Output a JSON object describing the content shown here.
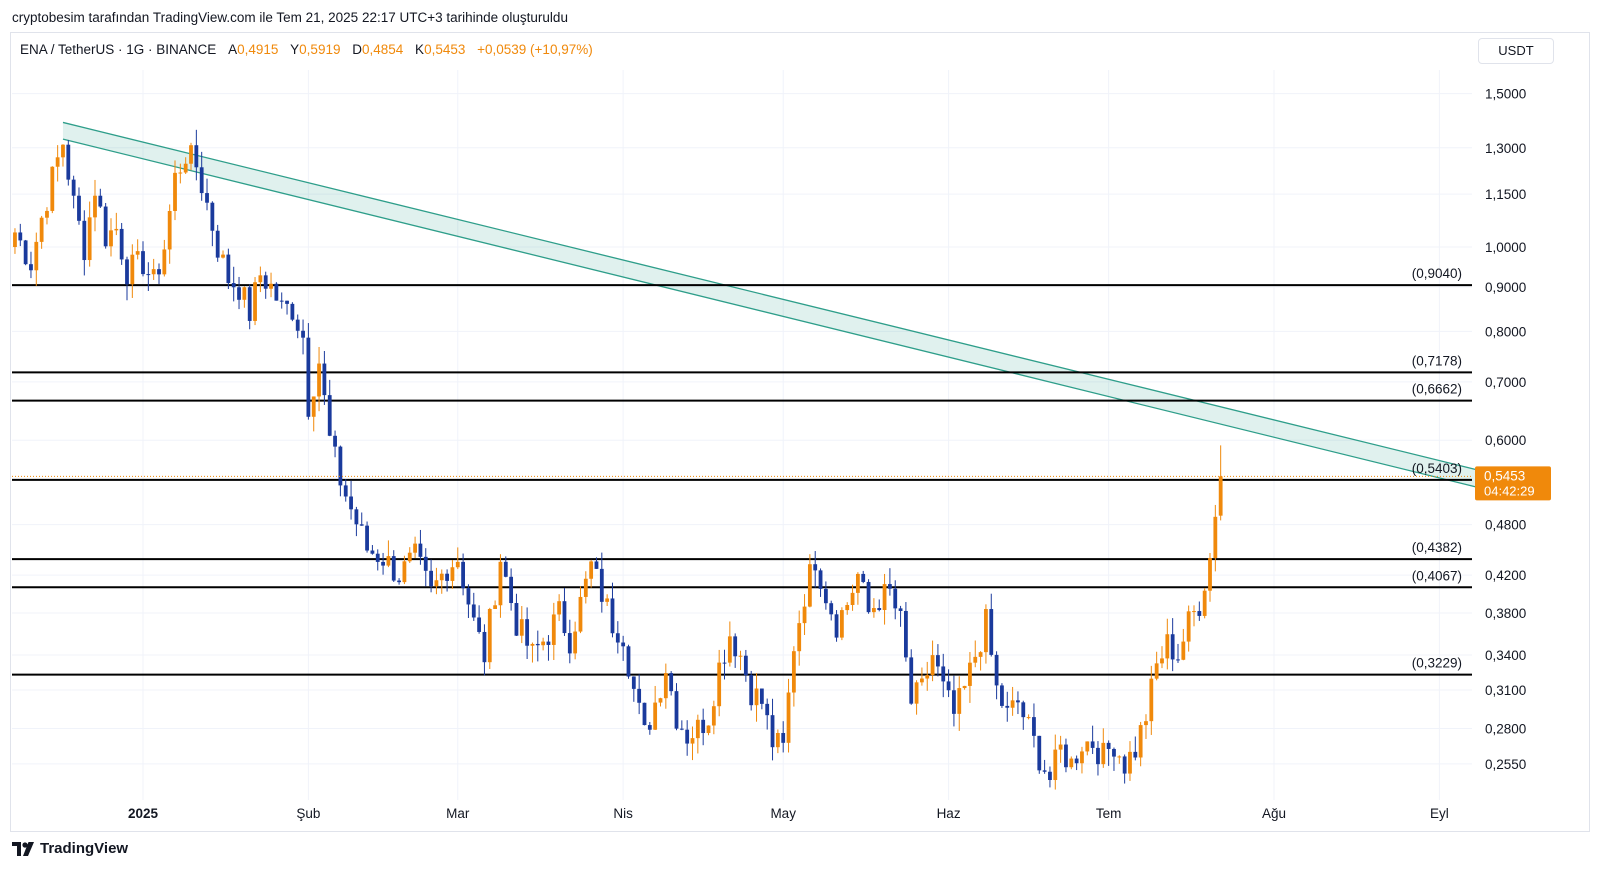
{
  "header": {
    "caption": "cryptobesim tarafından TradingView.com ile Tem 21, 2025 22:17 UTC+3 tarihinde oluşturuldu",
    "symbol": "ENA / TetherUS · 1G · BINANCE",
    "ohlc": {
      "open_label": "A",
      "open": "0,4915",
      "high_label": "Y",
      "high": "0,5919",
      "low_label": "D",
      "low": "0,4854",
      "close_label": "K",
      "close": "0,5453",
      "change": "+0,0539 (+10,97%)"
    },
    "currency": "USDT"
  },
  "brand": {
    "name": "TradingView"
  },
  "colors": {
    "up": "#f0890b",
    "down": "#1a3a9c",
    "level": "#000000",
    "channel": "#2e9e8a",
    "price_tag": "#f0890b"
  },
  "chart_data": {
    "type": "candlestick",
    "scale": "log",
    "ylim": [
      0.23,
      1.62
    ],
    "x_ticks": [
      {
        "label": "2025",
        "day": 0
      },
      {
        "label": "Şub",
        "day": 31
      },
      {
        "label": "Mar",
        "day": 59
      },
      {
        "label": "Nis",
        "day": 90
      },
      {
        "label": "May",
        "day": 120
      },
      {
        "label": "Haz",
        "day": 151
      },
      {
        "label": "Tem",
        "day": 181
      },
      {
        "label": "Ağu",
        "day": 212
      },
      {
        "label": "Eyl",
        "day": 243
      }
    ],
    "y_ticks": [
      "1,5000",
      "1,3000",
      "1,1500",
      "1,0000",
      "0,9000",
      "0,8000",
      "0,7000",
      "0,6000",
      "0,4800",
      "0,4200",
      "0,3800",
      "0,3400",
      "0,3100",
      "0,2800",
      "0,2550"
    ],
    "levels": [
      {
        "value": 0.904,
        "label": "(0,9040)"
      },
      {
        "value": 0.7178,
        "label": "(0,7178)"
      },
      {
        "value": 0.6662,
        "label": "(0,6662)"
      },
      {
        "value": 0.5403,
        "label": "(0,5403)"
      },
      {
        "value": 0.4382,
        "label": "(0,4382)"
      },
      {
        "value": 0.4067,
        "label": "(0,4067)"
      },
      {
        "value": 0.3229,
        "label": "(0,3229)"
      }
    ],
    "trend_channel": {
      "upper": [
        {
          "day": -15,
          "price": 1.39
        },
        {
          "day": 250,
          "price": 0.555
        }
      ],
      "lower": [
        {
          "day": -15,
          "price": 1.33
        },
        {
          "day": 250,
          "price": 0.53
        }
      ]
    },
    "last_price": {
      "value": 0.5453,
      "label": "0,5453",
      "countdown": "04:42:29"
    },
    "close_anchors": [
      {
        "day": -24,
        "price": 1.04
      },
      {
        "day": -21,
        "price": 0.96
      },
      {
        "day": -19,
        "price": 1.08
      },
      {
        "day": -17,
        "price": 1.2
      },
      {
        "day": -15,
        "price": 1.32
      },
      {
        "day": -13,
        "price": 1.12
      },
      {
        "day": -11,
        "price": 1.0
      },
      {
        "day": -9,
        "price": 1.17
      },
      {
        "day": -7,
        "price": 1.03
      },
      {
        "day": -5,
        "price": 1.05
      },
      {
        "day": -3,
        "price": 0.94
      },
      {
        "day": 0,
        "price": 0.96
      },
      {
        "day": 2,
        "price": 0.91
      },
      {
        "day": 4,
        "price": 1.0
      },
      {
        "day": 6,
        "price": 1.2
      },
      {
        "day": 8,
        "price": 1.28
      },
      {
        "day": 10,
        "price": 1.24
      },
      {
        "day": 12,
        "price": 1.12
      },
      {
        "day": 14,
        "price": 1.0
      },
      {
        "day": 16,
        "price": 0.92
      },
      {
        "day": 18,
        "price": 0.9
      },
      {
        "day": 20,
        "price": 0.84
      },
      {
        "day": 22,
        "price": 0.93
      },
      {
        "day": 24,
        "price": 0.9
      },
      {
        "day": 26,
        "price": 0.85
      },
      {
        "day": 28,
        "price": 0.85
      },
      {
        "day": 30,
        "price": 0.79
      },
      {
        "day": 31,
        "price": 0.66
      },
      {
        "day": 33,
        "price": 0.74
      },
      {
        "day": 35,
        "price": 0.6
      },
      {
        "day": 37,
        "price": 0.54
      },
      {
        "day": 39,
        "price": 0.5
      },
      {
        "day": 42,
        "price": 0.45
      },
      {
        "day": 45,
        "price": 0.44
      },
      {
        "day": 48,
        "price": 0.42
      },
      {
        "day": 51,
        "price": 0.44
      },
      {
        "day": 54,
        "price": 0.4
      },
      {
        "day": 57,
        "price": 0.43
      },
      {
        "day": 59,
        "price": 0.44
      },
      {
        "day": 62,
        "price": 0.37
      },
      {
        "day": 64,
        "price": 0.34
      },
      {
        "day": 67,
        "price": 0.44
      },
      {
        "day": 70,
        "price": 0.37
      },
      {
        "day": 73,
        "price": 0.34
      },
      {
        "day": 76,
        "price": 0.36
      },
      {
        "day": 78,
        "price": 0.38
      },
      {
        "day": 80,
        "price": 0.355
      },
      {
        "day": 82,
        "price": 0.39
      },
      {
        "day": 84,
        "price": 0.43
      },
      {
        "day": 86,
        "price": 0.4
      },
      {
        "day": 88,
        "price": 0.37
      },
      {
        "day": 90,
        "price": 0.36
      },
      {
        "day": 92,
        "price": 0.31
      },
      {
        "day": 94,
        "price": 0.275
      },
      {
        "day": 96,
        "price": 0.3
      },
      {
        "day": 98,
        "price": 0.33
      },
      {
        "day": 100,
        "price": 0.29
      },
      {
        "day": 102,
        "price": 0.275
      },
      {
        "day": 104,
        "price": 0.28
      },
      {
        "day": 106,
        "price": 0.29
      },
      {
        "day": 108,
        "price": 0.33
      },
      {
        "day": 110,
        "price": 0.36
      },
      {
        "day": 112,
        "price": 0.34
      },
      {
        "day": 114,
        "price": 0.31
      },
      {
        "day": 116,
        "price": 0.3
      },
      {
        "day": 118,
        "price": 0.27
      },
      {
        "day": 120,
        "price": 0.265
      },
      {
        "day": 122,
        "price": 0.35
      },
      {
        "day": 124,
        "price": 0.4
      },
      {
        "day": 126,
        "price": 0.44
      },
      {
        "day": 128,
        "price": 0.4
      },
      {
        "day": 130,
        "price": 0.37
      },
      {
        "day": 132,
        "price": 0.39
      },
      {
        "day": 134,
        "price": 0.42
      },
      {
        "day": 136,
        "price": 0.38
      },
      {
        "day": 138,
        "price": 0.395
      },
      {
        "day": 140,
        "price": 0.4
      },
      {
        "day": 142,
        "price": 0.37
      },
      {
        "day": 144,
        "price": 0.3
      },
      {
        "day": 146,
        "price": 0.31
      },
      {
        "day": 148,
        "price": 0.34
      },
      {
        "day": 150,
        "price": 0.31
      },
      {
        "day": 152,
        "price": 0.29
      },
      {
        "day": 154,
        "price": 0.31
      },
      {
        "day": 156,
        "price": 0.34
      },
      {
        "day": 158,
        "price": 0.37
      },
      {
        "day": 160,
        "price": 0.31
      },
      {
        "day": 162,
        "price": 0.29
      },
      {
        "day": 164,
        "price": 0.3
      },
      {
        "day": 166,
        "price": 0.28
      },
      {
        "day": 168,
        "price": 0.26
      },
      {
        "day": 170,
        "price": 0.245
      },
      {
        "day": 172,
        "price": 0.265
      },
      {
        "day": 174,
        "price": 0.255
      },
      {
        "day": 176,
        "price": 0.27
      },
      {
        "day": 178,
        "price": 0.27
      },
      {
        "day": 180,
        "price": 0.26
      },
      {
        "day": 182,
        "price": 0.27
      },
      {
        "day": 184,
        "price": 0.255
      },
      {
        "day": 186,
        "price": 0.265
      },
      {
        "day": 188,
        "price": 0.29
      },
      {
        "day": 190,
        "price": 0.33
      },
      {
        "day": 192,
        "price": 0.35
      },
      {
        "day": 194,
        "price": 0.34
      },
      {
        "day": 196,
        "price": 0.37
      },
      {
        "day": 198,
        "price": 0.39
      },
      {
        "day": 200,
        "price": 0.44
      },
      {
        "day": 201,
        "price": 0.49
      },
      {
        "day": 202,
        "price": 0.5453
      }
    ]
  }
}
